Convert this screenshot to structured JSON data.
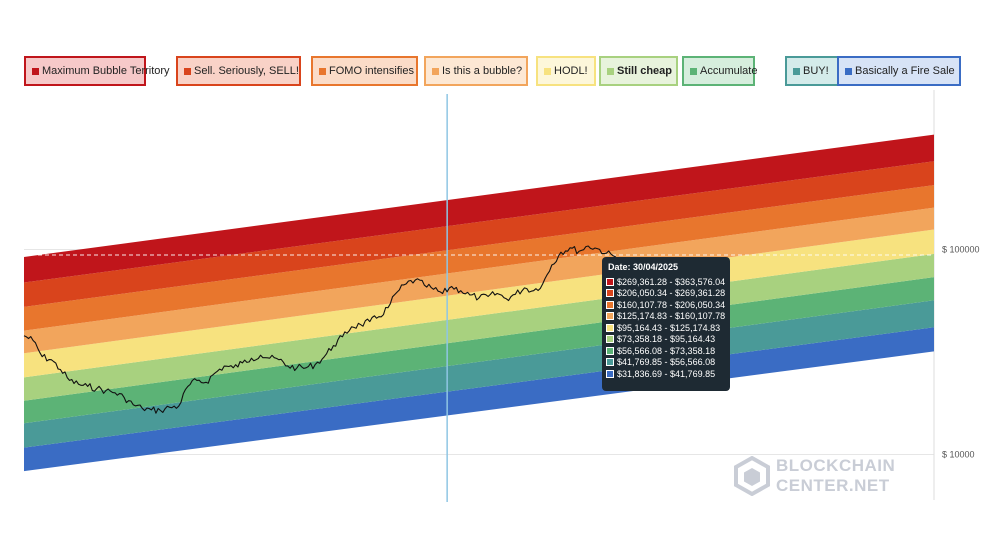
{
  "legend": [
    {
      "label": "Maximum Bubble Territory",
      "color": "#c0151b",
      "bg": "#f6c9c9",
      "bold": false
    },
    {
      "label": "Sell. Seriously, SELL!",
      "color": "#d9441c",
      "bg": "#f9d2c7",
      "bold": false
    },
    {
      "label": "FOMO intensifies",
      "color": "#e8762d",
      "bg": "#fbdcc8",
      "bold": false
    },
    {
      "label": "Is this a bubble?",
      "color": "#f2a55c",
      "bg": "#fde8d4",
      "bold": false
    },
    {
      "label": "HODL!",
      "color": "#f7e27f",
      "bg": "#fdf7da",
      "bold": false
    },
    {
      "label": "Still cheap",
      "color": "#a8d17f",
      "bg": "#e8f3dc",
      "bold": true
    },
    {
      "label": "Accumulate",
      "color": "#5cb376",
      "bg": "#d6eedd",
      "bold": false
    },
    {
      "label": "BUY!",
      "color": "#4a9a98",
      "bg": "#d4ebea",
      "bold": false
    },
    {
      "label": "Basically a Fire Sale",
      "color": "#3a6cc4",
      "bg": "#d7e3f6",
      "bold": false
    }
  ],
  "tooltip": {
    "date": "Date: 30/04/2025",
    "rows": [
      {
        "range": "$269,361.28 - $363,576.04",
        "color": "#c0151b"
      },
      {
        "range": "$206,050.34 - $269,361.28",
        "color": "#d9441c"
      },
      {
        "range": "$160,107.78 - $206,050.34",
        "color": "#e8762d"
      },
      {
        "range": "$125,174.83 - $160,107.78",
        "color": "#f2a55c"
      },
      {
        "range": "$95,164.43 - $125,174.83",
        "color": "#f7e27f"
      },
      {
        "range": "$73,358.18 - $95,164.43",
        "color": "#a8d17f"
      },
      {
        "range": "$56,566.08 - $73,358.18",
        "color": "#5cb376"
      },
      {
        "range": "$41,769.85 - $56,566.08",
        "color": "#4a9a98"
      },
      {
        "range": "$31,836.69 - $41,769.85",
        "color": "#3a6cc4"
      }
    ]
  },
  "logo": {
    "line1": "BLOCKCHAIN",
    "line2": "CENTER.NET"
  },
  "chart_data": {
    "type": "area",
    "y_scale": "log",
    "ylim": [
      6000,
      600000
    ],
    "y_ticks": [
      {
        "value": 100000,
        "label": "$ 100000"
      },
      {
        "value": 10000,
        "label": "$ 10000"
      }
    ],
    "x_range": [
      0,
      100
    ],
    "band_colors": [
      "#3a6cc4",
      "#4a9a98",
      "#5cb376",
      "#a8d17f",
      "#f7e27f",
      "#f2a55c",
      "#e8762d",
      "#d9441c",
      "#c0151b"
    ],
    "band_boundaries_start": [
      8300,
      10800,
      14200,
      18300,
      23800,
      31200,
      40200,
      52500,
      69000,
      92000
    ],
    "band_boundaries_end": [
      31836.69,
      41769.85,
      56566.08,
      73358.18,
      95164.43,
      125174.83,
      160107.78,
      206050.34,
      269361.28,
      363576.04
    ],
    "hover_x": 46.5,
    "reference_price": 94000,
    "price_series": [
      [
        0,
        38000
      ],
      [
        1,
        36000
      ],
      [
        2,
        30000
      ],
      [
        3,
        29000
      ],
      [
        4,
        26000
      ],
      [
        5,
        23000
      ],
      [
        6,
        22000
      ],
      [
        7,
        21500
      ],
      [
        8,
        21000
      ],
      [
        9,
        20500
      ],
      [
        10,
        20000
      ],
      [
        11,
        19000
      ],
      [
        12,
        17500
      ],
      [
        13,
        16800
      ],
      [
        14,
        16500
      ],
      [
        15,
        16400
      ],
      [
        16,
        17000
      ],
      [
        17,
        17200
      ],
      [
        18,
        21500
      ],
      [
        19,
        23000
      ],
      [
        20,
        22500
      ],
      [
        21,
        25000
      ],
      [
        22,
        27000
      ],
      [
        23,
        26500
      ],
      [
        24,
        28000
      ],
      [
        25,
        29500
      ],
      [
        26,
        30500
      ],
      [
        27,
        29500
      ],
      [
        28,
        29000
      ],
      [
        29,
        27000
      ],
      [
        30,
        26500
      ],
      [
        31,
        26500
      ],
      [
        32,
        27500
      ],
      [
        33,
        30000
      ],
      [
        34,
        34000
      ],
      [
        35,
        37500
      ],
      [
        36,
        42000
      ],
      [
        37,
        43000
      ],
      [
        38,
        44500
      ],
      [
        39,
        47000
      ],
      [
        40,
        52000
      ],
      [
        41,
        62000
      ],
      [
        42,
        68000
      ],
      [
        43,
        71000
      ],
      [
        44,
        67000
      ],
      [
        45,
        64000
      ],
      [
        46,
        61000
      ],
      [
        47,
        66000
      ],
      [
        48,
        63000
      ],
      [
        49,
        60000
      ],
      [
        50,
        58000
      ],
      [
        51,
        59000
      ],
      [
        52,
        61000
      ],
      [
        53,
        57500
      ],
      [
        54,
        60500
      ],
      [
        55,
        65000
      ],
      [
        56,
        63000
      ],
      [
        57,
        68000
      ],
      [
        58,
        84000
      ],
      [
        59,
        97000
      ],
      [
        60,
        102000
      ],
      [
        61,
        98000
      ],
      [
        62,
        104000
      ],
      [
        63,
        101000
      ],
      [
        64,
        96000
      ],
      [
        65,
        92000
      ],
      [
        66,
        84000
      ],
      [
        67,
        86000
      ],
      [
        68,
        88000
      ]
    ]
  }
}
